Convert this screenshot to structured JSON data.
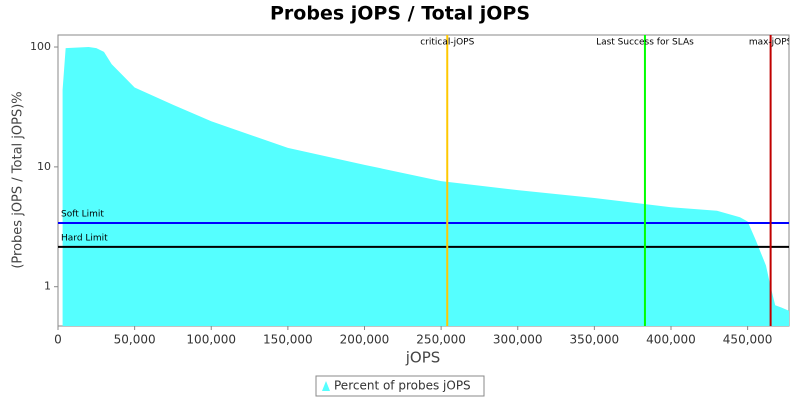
{
  "chart_data": {
    "type": "area",
    "title": "Probes jOPS / Total jOPS",
    "x_label": "jOPS",
    "y_label": "(Probes jOPS / Total jOPS)%",
    "log_y": true,
    "legend": "bottom",
    "series": [
      {
        "name": "Percent of probes jOPS",
        "color": "#55ffff",
        "x": [
          3000,
          5000,
          20000,
          25000,
          30000,
          35000,
          50000,
          75000,
          100000,
          150000,
          200000,
          250000,
          300000,
          350000,
          400000,
          430000,
          445000,
          450000,
          455000,
          462000,
          465000,
          468000,
          472000,
          477000
        ],
        "values": [
          44,
          98,
          100,
          98,
          91,
          72,
          46,
          33,
          24,
          14.4,
          10.4,
          7.6,
          6.4,
          5.5,
          4.6,
          4.3,
          3.8,
          3.5,
          2.5,
          1.5,
          1.0,
          0.7,
          0.67,
          0.63
        ]
      }
    ],
    "xlim": [
      0,
      477000
    ],
    "xticks": [
      0,
      {
        "value": 50000,
        "label": "50,000"
      },
      {
        "value": 100000,
        "label": "100,000"
      },
      {
        "value": 150000,
        "label": "150,000"
      },
      {
        "value": 200000,
        "label": "200,000"
      },
      {
        "value": 250000,
        "label": "250,000"
      },
      {
        "value": 300000,
        "label": "300,000"
      },
      {
        "value": 350000,
        "label": "350,000"
      },
      {
        "value": 400000,
        "label": "400,000"
      },
      {
        "value": 450000,
        "label": "450,000"
      }
    ],
    "ylim": [
      0.47,
      126
    ],
    "yticks": [
      1,
      10,
      100
    ],
    "markers": [
      {
        "label": "critical-jOPS",
        "value": 254000,
        "color": "#ffc800"
      },
      {
        "label": "Last Success for SLAs",
        "value": 383000,
        "color": "#00ff00"
      },
      {
        "label": "max-jOPS",
        "value": 465000,
        "color": "#c00000"
      }
    ],
    "limits": [
      {
        "label": "Soft Limit",
        "value": 3.4,
        "color": "#0000ff"
      },
      {
        "label": "Hard Limit",
        "value": 2.15,
        "color": "#000000"
      }
    ]
  }
}
